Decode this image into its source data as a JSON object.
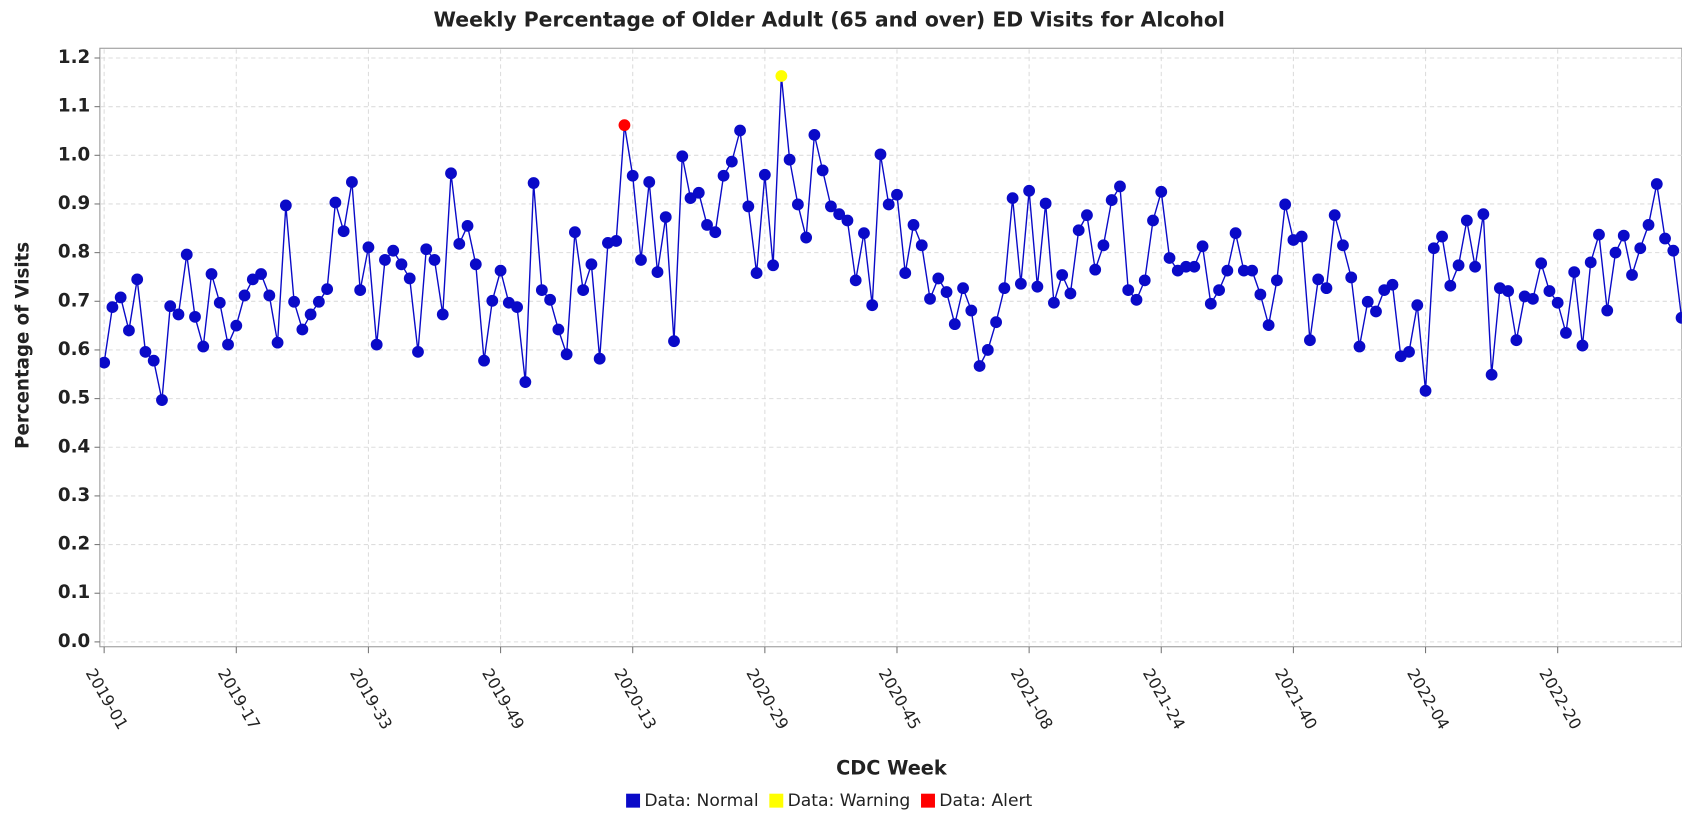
{
  "chart_data": {
    "type": "line",
    "title": "Weekly Percentage of Older Adult (65 and over) ED Visits for Alcohol",
    "x_label": "CDC Week",
    "y_label": "Percentage of Visits",
    "categories": [
      "2019-01",
      null,
      null,
      null,
      null,
      null,
      null,
      null,
      null,
      null,
      null,
      null,
      null,
      null,
      null,
      null,
      "2019-17",
      null,
      null,
      null,
      null,
      null,
      null,
      null,
      null,
      null,
      null,
      null,
      null,
      null,
      null,
      null,
      "2019-33",
      null,
      null,
      null,
      null,
      null,
      null,
      null,
      null,
      null,
      null,
      null,
      null,
      null,
      null,
      null,
      "2019-49",
      null,
      null,
      null,
      null,
      null,
      null,
      null,
      null,
      null,
      null,
      null,
      null,
      null,
      null,
      null,
      "2020-13",
      null,
      null,
      null,
      null,
      null,
      null,
      null,
      null,
      null,
      null,
      null,
      null,
      null,
      null,
      null,
      "2020-29",
      null,
      null,
      null,
      null,
      null,
      null,
      null,
      null,
      null,
      null,
      null,
      null,
      null,
      null,
      null,
      "2020-45",
      null,
      null,
      null,
      null,
      null,
      null,
      null,
      null,
      null,
      null,
      null,
      null,
      null,
      null,
      null,
      "2021-08",
      null,
      null,
      null,
      null,
      null,
      null,
      null,
      null,
      null,
      null,
      null,
      null,
      null,
      null,
      null,
      "2021-24",
      null,
      null,
      null,
      null,
      null,
      null,
      null,
      null,
      null,
      null,
      null,
      null,
      null,
      null,
      null,
      "2021-40",
      null,
      null,
      null,
      null,
      null,
      null,
      null,
      null,
      null,
      null,
      null,
      null,
      null,
      null,
      null,
      "2022-04",
      null,
      null,
      null,
      null,
      null,
      null,
      null,
      null,
      null,
      null,
      null,
      null,
      null,
      null,
      null,
      "2022-20",
      null,
      null,
      null,
      null,
      null,
      null,
      null,
      null,
      null,
      null,
      null,
      null,
      null,
      null,
      null
    ],
    "series": [
      {
        "name": "Data: Normal",
        "color": "#0a0ac8",
        "values": [
          0.574,
          0.688,
          0.708,
          0.64,
          0.745,
          0.596,
          0.578,
          0.497,
          0.69,
          0.673,
          0.796,
          0.668,
          0.607,
          0.756,
          0.697,
          0.611,
          0.65,
          0.712,
          0.745,
          0.756,
          0.712,
          0.615,
          0.897,
          0.699,
          0.642,
          0.673,
          0.699,
          0.725,
          0.903,
          0.844,
          0.945,
          0.723,
          0.811,
          0.611,
          0.785,
          0.804,
          0.776,
          0.747,
          0.596,
          0.807,
          0.785,
          0.673,
          0.963,
          0.818,
          0.855,
          0.776,
          0.578,
          0.701,
          0.763,
          0.697,
          0.688,
          0.534,
          0.943,
          0.723,
          0.703,
          0.642,
          0.591,
          0.842,
          0.723,
          0.776,
          0.582,
          0.82,
          0.824,
          null,
          0.958,
          0.785,
          0.945,
          0.76,
          0.873,
          0.618,
          0.998,
          0.912,
          0.923,
          0.857,
          0.842,
          0.958,
          0.987,
          1.051,
          0.895,
          0.758,
          0.96,
          0.774,
          null,
          0.991,
          0.899,
          0.831,
          1.042,
          0.969,
          0.895,
          0.879,
          0.866,
          0.743,
          0.84,
          0.692,
          1.002,
          0.899,
          0.919,
          0.758,
          0.857,
          0.815,
          0.705,
          0.747,
          0.719,
          0.653,
          0.727,
          0.681,
          0.567,
          0.6,
          0.657,
          0.727,
          0.912,
          0.736,
          0.927,
          0.73,
          0.901,
          0.697,
          0.754,
          0.716,
          0.846,
          0.877,
          0.765,
          0.815,
          0.908,
          0.936,
          0.723,
          0.703,
          0.743,
          0.866,
          0.925,
          0.789,
          0.763,
          0.771,
          0.771,
          0.813,
          0.695,
          0.723,
          0.763,
          0.84,
          0.763,
          0.763,
          0.714,
          0.651,
          0.743,
          0.899,
          0.826,
          0.833,
          0.62,
          0.745,
          0.727,
          0.877,
          0.815,
          0.749,
          0.607,
          0.699,
          0.679,
          0.723,
          0.734,
          0.587,
          0.596,
          0.692,
          0.516,
          0.809,
          0.833,
          0.732,
          0.774,
          0.866,
          0.771,
          0.879,
          0.549,
          0.727,
          0.721,
          0.62,
          0.71,
          0.705,
          0.778,
          0.721,
          0.697,
          0.635,
          0.76,
          0.609,
          0.78,
          0.837,
          0.681,
          0.8,
          0.835,
          0.754,
          0.809,
          0.857,
          0.941,
          0.829,
          0.804,
          0.666
        ]
      },
      {
        "name": "Data: Warning",
        "color": "#ffff00",
        "values": [
          null,
          null,
          null,
          null,
          null,
          null,
          null,
          null,
          null,
          null,
          null,
          null,
          null,
          null,
          null,
          null,
          null,
          null,
          null,
          null,
          null,
          null,
          null,
          null,
          null,
          null,
          null,
          null,
          null,
          null,
          null,
          null,
          null,
          null,
          null,
          null,
          null,
          null,
          null,
          null,
          null,
          null,
          null,
          null,
          null,
          null,
          null,
          null,
          null,
          null,
          null,
          null,
          null,
          null,
          null,
          null,
          null,
          null,
          null,
          null,
          null,
          null,
          null,
          null,
          null,
          null,
          null,
          null,
          null,
          null,
          null,
          null,
          null,
          null,
          null,
          null,
          null,
          null,
          null,
          null,
          null,
          null,
          1.163,
          null,
          null,
          null,
          null,
          null,
          null,
          null,
          null,
          null,
          null,
          null,
          null,
          null,
          null,
          null,
          null,
          null,
          null,
          null,
          null,
          null,
          null,
          null,
          null,
          null,
          null,
          null,
          null,
          null,
          null,
          null,
          null,
          null,
          null,
          null,
          null,
          null,
          null,
          null,
          null,
          null,
          null,
          null,
          null,
          null,
          null,
          null,
          null,
          null,
          null,
          null,
          null,
          null,
          null,
          null,
          null,
          null,
          null,
          null,
          null,
          null,
          null,
          null,
          null,
          null,
          null,
          null,
          null,
          null,
          null,
          null,
          null,
          null,
          null,
          null,
          null,
          null,
          null,
          null,
          null,
          null,
          null,
          null,
          null,
          null,
          null,
          null,
          null,
          null,
          null,
          null,
          null,
          null,
          null,
          null,
          null,
          null,
          null,
          null,
          null,
          null,
          null,
          null,
          null,
          null,
          null,
          null,
          null,
          null
        ]
      },
      {
        "name": "Data: Alert",
        "color": "#ff0000",
        "values": [
          null,
          null,
          null,
          null,
          null,
          null,
          null,
          null,
          null,
          null,
          null,
          null,
          null,
          null,
          null,
          null,
          null,
          null,
          null,
          null,
          null,
          null,
          null,
          null,
          null,
          null,
          null,
          null,
          null,
          null,
          null,
          null,
          null,
          null,
          null,
          null,
          null,
          null,
          null,
          null,
          null,
          null,
          null,
          null,
          null,
          null,
          null,
          null,
          null,
          null,
          null,
          null,
          null,
          null,
          null,
          null,
          null,
          null,
          null,
          null,
          null,
          null,
          null,
          1.062,
          null,
          null,
          null,
          null,
          null,
          null,
          null,
          null,
          null,
          null,
          null,
          null,
          null,
          null,
          null,
          null,
          null,
          null,
          null,
          null,
          null,
          null,
          null,
          null,
          null,
          null,
          null,
          null,
          null,
          null,
          null,
          null,
          null,
          null,
          null,
          null,
          null,
          null,
          null,
          null,
          null,
          null,
          null,
          null,
          null,
          null,
          null,
          null,
          null,
          null,
          null,
          null,
          null,
          null,
          null,
          null,
          null,
          null,
          null,
          null,
          null,
          null,
          null,
          null,
          null,
          null,
          null,
          null,
          null,
          null,
          null,
          null,
          null,
          null,
          null,
          null,
          null,
          null,
          null,
          null,
          null,
          null,
          null,
          null,
          null,
          null,
          null,
          null,
          null,
          null,
          null,
          null,
          null,
          null,
          null,
          null,
          null,
          null,
          null,
          null,
          null,
          null,
          null,
          null,
          null,
          null,
          null,
          null,
          null,
          null,
          null,
          null,
          null,
          null,
          null,
          null,
          null,
          null,
          null,
          null,
          null,
          null,
          null,
          null,
          null,
          null,
          null,
          null
        ]
      }
    ],
    "ylim": [
      -0.01,
      1.22
    ],
    "yticks": [
      {
        "value": 0,
        "label": "0.0"
      },
      0.1,
      0.2,
      0.3,
      0.4,
      0.5,
      0.6,
      0.7,
      0.8,
      0.9,
      {
        "value": 1,
        "label": "1.0"
      },
      1.1,
      1.2
    ],
    "grid": true
  }
}
